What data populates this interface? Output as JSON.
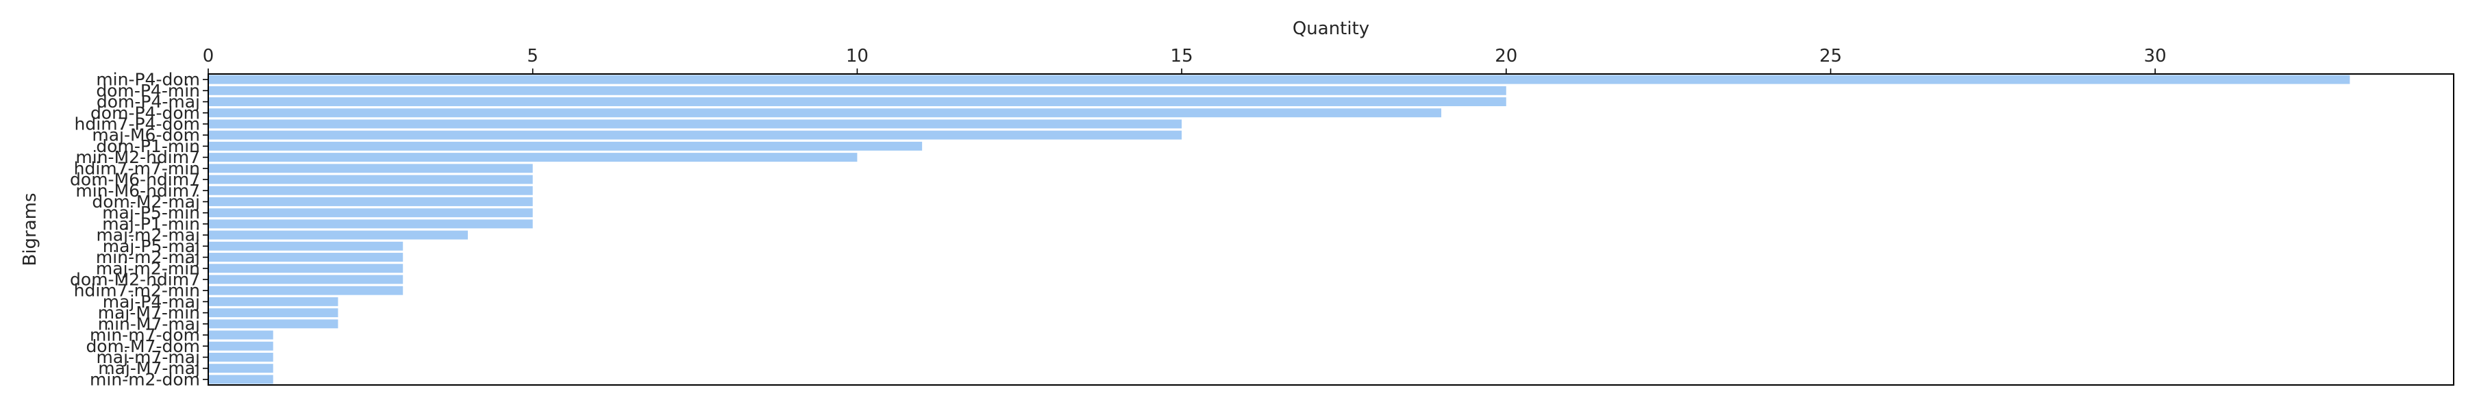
{
  "chart_data": {
    "type": "bar",
    "orientation": "horizontal",
    "title": "",
    "xlabel": "Quantity",
    "ylabel": "Bigrams",
    "xlim": [
      0,
      34.6
    ],
    "x_ticks": [
      0,
      5,
      10,
      15,
      20,
      25,
      30
    ],
    "x_axis_position": "top",
    "grid": false,
    "bar_color": "#a1c9f4",
    "categories": [
      "min-P4-dom",
      "dom-P4-min",
      "dom-P4-maj",
      "dom-P4-dom",
      "hdim7-P4-dom",
      "maj-M6-dom",
      "dom-P1-min",
      "min-M2-hdim7",
      "hdim7-m7-min",
      "dom-M6-hdim7",
      "min-M6-hdim7",
      "dom-M2-maj",
      "maj-P5-min",
      "maj-P1-min",
      "maj-m2-maj",
      "maj-P5-maj",
      "min-m2-maj",
      "maj-m2-min",
      "dom-M2-hdim7",
      "hdim7-m2-min",
      "maj-P4-maj",
      "maj-M7-min",
      "min-M7-maj",
      "min-m7-dom",
      "dom-M7-dom",
      "maj-m7-maj",
      "maj-M7-maj",
      "min-m2-dom"
    ],
    "values": [
      33,
      20,
      20,
      19,
      15,
      15,
      11,
      10,
      5,
      5,
      5,
      5,
      5,
      5,
      4,
      3,
      3,
      3,
      3,
      3,
      2,
      2,
      2,
      1,
      1,
      1,
      1,
      1
    ]
  }
}
